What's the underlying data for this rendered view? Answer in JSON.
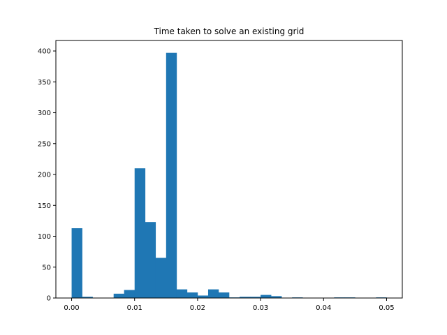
{
  "chart_data": {
    "type": "bar",
    "title": "Time taken to solve an existing grid",
    "xlabel": "",
    "ylabel": "",
    "bin_width": 0.00167,
    "bins": [
      {
        "x0": 0.0,
        "x1": 0.00167,
        "count": 113
      },
      {
        "x0": 0.00167,
        "x1": 0.00333,
        "count": 2
      },
      {
        "x0": 0.00333,
        "x1": 0.005,
        "count": 0
      },
      {
        "x0": 0.005,
        "x1": 0.00667,
        "count": 0
      },
      {
        "x0": 0.00667,
        "x1": 0.00833,
        "count": 7
      },
      {
        "x0": 0.00833,
        "x1": 0.01,
        "count": 13
      },
      {
        "x0": 0.01,
        "x1": 0.01167,
        "count": 210
      },
      {
        "x0": 0.01167,
        "x1": 0.01333,
        "count": 123
      },
      {
        "x0": 0.01333,
        "x1": 0.015,
        "count": 65
      },
      {
        "x0": 0.015,
        "x1": 0.01667,
        "count": 397
      },
      {
        "x0": 0.01667,
        "x1": 0.01833,
        "count": 14
      },
      {
        "x0": 0.01833,
        "x1": 0.02,
        "count": 9
      },
      {
        "x0": 0.02,
        "x1": 0.02167,
        "count": 4
      },
      {
        "x0": 0.02167,
        "x1": 0.02333,
        "count": 14
      },
      {
        "x0": 0.02333,
        "x1": 0.025,
        "count": 9
      },
      {
        "x0": 0.025,
        "x1": 0.02667,
        "count": 1
      },
      {
        "x0": 0.02667,
        "x1": 0.02833,
        "count": 2
      },
      {
        "x0": 0.02833,
        "x1": 0.03,
        "count": 2
      },
      {
        "x0": 0.03,
        "x1": 0.03167,
        "count": 5
      },
      {
        "x0": 0.03167,
        "x1": 0.03333,
        "count": 3
      },
      {
        "x0": 0.03333,
        "x1": 0.035,
        "count": 0
      },
      {
        "x0": 0.035,
        "x1": 0.03667,
        "count": 1
      },
      {
        "x0": 0.03667,
        "x1": 0.03833,
        "count": 0
      },
      {
        "x0": 0.03833,
        "x1": 0.04,
        "count": 0
      },
      {
        "x0": 0.04,
        "x1": 0.04167,
        "count": 0
      },
      {
        "x0": 0.04167,
        "x1": 0.04333,
        "count": 1
      },
      {
        "x0": 0.04333,
        "x1": 0.045,
        "count": 1
      },
      {
        "x0": 0.045,
        "x1": 0.04667,
        "count": 0
      },
      {
        "x0": 0.04667,
        "x1": 0.04833,
        "count": 0
      },
      {
        "x0": 0.04833,
        "x1": 0.05,
        "count": 1
      }
    ],
    "xlim": [
      -0.0025,
      0.0525
    ],
    "ylim": [
      0,
      417
    ],
    "xticks": [
      0.0,
      0.01,
      0.02,
      0.03,
      0.04,
      0.05
    ],
    "xtick_labels": [
      "0.00",
      "0.01",
      "0.02",
      "0.03",
      "0.04",
      "0.05"
    ],
    "yticks": [
      0,
      50,
      100,
      150,
      200,
      250,
      300,
      350,
      400
    ],
    "ytick_labels": [
      "0",
      "50",
      "100",
      "150",
      "200",
      "250",
      "300",
      "350",
      "400"
    ],
    "grid": false,
    "legend": "none",
    "colors": {
      "bar": "#1f77b4",
      "axes": "#000000",
      "background": "#ffffff"
    }
  }
}
